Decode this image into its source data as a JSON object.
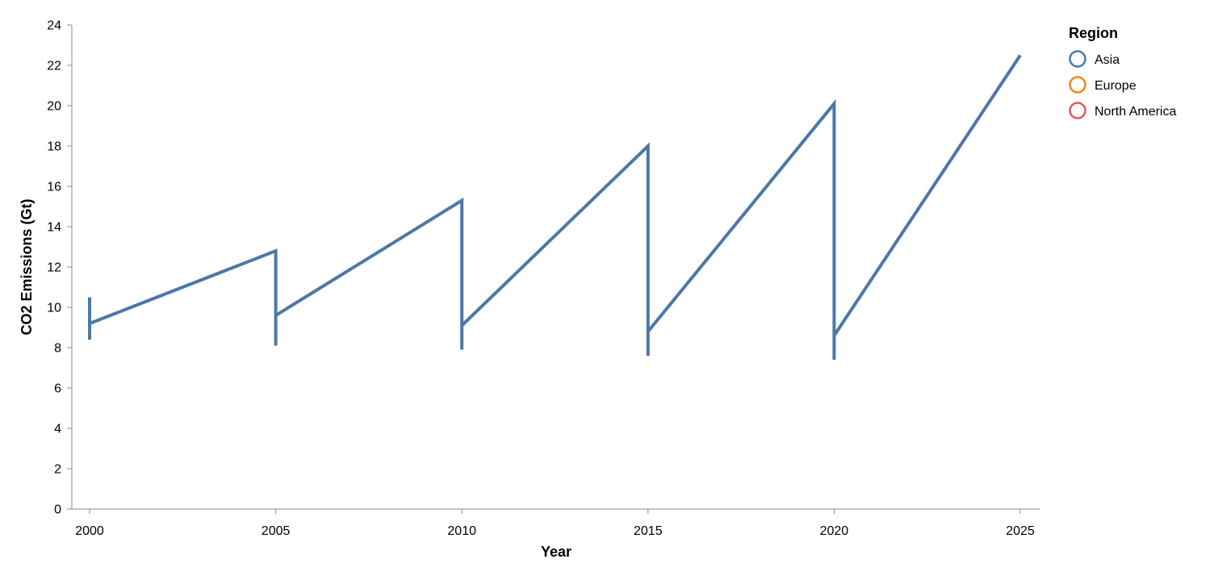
{
  "chart_data": {
    "type": "line",
    "xlabel": "Year",
    "ylabel": "CO2 Emissions (Gt)",
    "xlim": [
      2000,
      2025
    ],
    "ylim": [
      0,
      24
    ],
    "x_ticks": [
      "2000",
      "2005",
      "2010",
      "2015",
      "2020",
      "2025"
    ],
    "y_ticks": [
      "0",
      "2",
      "4",
      "6",
      "8",
      "10",
      "12",
      "14",
      "16",
      "18",
      "20",
      "22",
      "24"
    ],
    "grid": false,
    "legend": {
      "title": "Region",
      "placement": "top-right",
      "entries": [
        {
          "label": "Asia",
          "color": "#4c78a8"
        },
        {
          "label": "Europe",
          "color": "#f58518"
        },
        {
          "label": "North America",
          "color": "#e45756"
        }
      ]
    },
    "series": [
      {
        "name": "Asia",
        "color": "#4c78a8",
        "points": [
          {
            "x": 2000,
            "y": 10.5
          },
          {
            "x": 2000,
            "y": 8.4
          },
          {
            "x": 2000,
            "y": 9.2
          },
          {
            "x": 2005,
            "y": 12.8
          },
          {
            "x": 2005,
            "y": 8.1
          },
          {
            "x": 2005,
            "y": 9.6
          },
          {
            "x": 2010,
            "y": 15.3
          },
          {
            "x": 2010,
            "y": 7.9
          },
          {
            "x": 2010,
            "y": 9.1
          },
          {
            "x": 2015,
            "y": 18.0
          },
          {
            "x": 2015,
            "y": 7.6
          },
          {
            "x": 2015,
            "y": 8.8
          },
          {
            "x": 2020,
            "y": 20.1
          },
          {
            "x": 2020,
            "y": 7.4
          },
          {
            "x": 2020,
            "y": 8.6
          },
          {
            "x": 2025,
            "y": 22.5
          }
        ]
      }
    ]
  }
}
